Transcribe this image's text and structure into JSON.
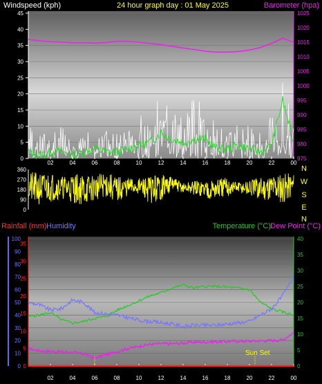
{
  "header": {
    "left_label": "Windspeed (kph)",
    "title": "24 hour graph day : 01 May 2025",
    "right_label": "Barometer (hpa)"
  },
  "colors": {
    "wind": "#ffffff",
    "gust": "#f0f0f0",
    "avg_wind": "#22dd22",
    "barometer": "#ee22ee",
    "direction": "#ffff00",
    "rain": "#ff2222",
    "humidity": "#7777ff",
    "temperature": "#22cc22",
    "dewpoint": "#ee22ee",
    "label_yellow": "#ffff00"
  },
  "chart_data": [
    {
      "type": "line",
      "name": "wind-barometer",
      "xlabels": [
        "02",
        "04",
        "06",
        "08",
        "10",
        "12",
        "14",
        "16",
        "18",
        "20",
        "22",
        "00"
      ],
      "left_axis": {
        "label": "Windspeed (kph)",
        "ticks": [
          "0",
          "5",
          "10",
          "15",
          "20",
          "25",
          "30",
          "35",
          "40",
          "45"
        ],
        "ylim": [
          0,
          45
        ]
      },
      "right_axis": {
        "label": "Barometer (hpa)",
        "ticks": [
          "975",
          "980",
          "985",
          "990",
          "995",
          "1000",
          "1005",
          "1010",
          "1015",
          "1020",
          "1025"
        ],
        "ylim": [
          975,
          1025
        ]
      },
      "barometer": {
        "x": [
          0,
          1,
          2,
          3,
          4,
          5,
          6,
          7,
          8,
          9,
          10,
          11,
          12,
          13,
          14,
          15,
          16,
          17,
          18,
          19,
          20,
          21,
          22,
          23,
          24
        ],
        "values": [
          1016.0,
          1015.5,
          1015.2,
          1015.0,
          1014.8,
          1014.8,
          1014.7,
          1014.9,
          1015.3,
          1015.3,
          1015.0,
          1014.6,
          1014.2,
          1013.6,
          1013.0,
          1012.5,
          1011.9,
          1011.6,
          1011.6,
          1011.8,
          1012.3,
          1013.2,
          1014.6,
          1016.4,
          1015.0
        ]
      },
      "wind_envelope": {
        "x": [
          0,
          1,
          2,
          3,
          4,
          5,
          6,
          7,
          8,
          9,
          10,
          11,
          12,
          13,
          14,
          15,
          16,
          17,
          18,
          19,
          20,
          21,
          22,
          23,
          24
        ],
        "peak": [
          11,
          7,
          9,
          10,
          5,
          7,
          11,
          9,
          9,
          10,
          13,
          15,
          20,
          17,
          14,
          19,
          16,
          11,
          10,
          12,
          11,
          8,
          14,
          27,
          12
        ],
        "avg": [
          2,
          1,
          2,
          2,
          1,
          2,
          3,
          2,
          2,
          3,
          4,
          5,
          8,
          6,
          5,
          6,
          6,
          3,
          3,
          4,
          3,
          2,
          4,
          18,
          5
        ]
      }
    },
    {
      "type": "line",
      "name": "wind-direction",
      "left_axis": {
        "ticks": [
          "0",
          "90",
          "180",
          "270",
          "360"
        ],
        "ylim": [
          0,
          360
        ]
      },
      "compass": [
        "N",
        "W",
        "S",
        "E",
        "N"
      ],
      "direction_band": {
        "x": [
          0,
          1,
          2,
          3,
          4,
          5,
          6,
          7,
          8,
          9,
          10,
          11,
          12,
          13,
          14,
          15,
          16,
          17,
          18,
          19,
          20,
          21,
          22,
          23,
          24
        ],
        "low": [
          60,
          40,
          70,
          100,
          60,
          40,
          80,
          110,
          60,
          120,
          140,
          50,
          80,
          170,
          150,
          130,
          100,
          90,
          110,
          150,
          120,
          80,
          100,
          60,
          120
        ],
        "high": [
          340,
          330,
          340,
          300,
          330,
          320,
          310,
          340,
          300,
          290,
          280,
          310,
          320,
          300,
          240,
          260,
          270,
          280,
          290,
          250,
          260,
          300,
          320,
          340,
          330
        ]
      }
    },
    {
      "type": "line",
      "name": "temp-humidity-rain",
      "xlabels": [
        "02",
        "04",
        "06",
        "08",
        "10",
        "12",
        "14",
        "16",
        "18",
        "20",
        "22",
        "00"
      ],
      "header": {
        "rain_label": "Rainfall (mm)",
        "humidity_label": "Humidity",
        "temp_label": "Temperature (°C)",
        "dew_label": "Dew Point (°C)"
      },
      "humidity_axis": {
        "ticks": [
          "0",
          "10",
          "20",
          "30",
          "40",
          "50",
          "60",
          "70",
          "80",
          "90",
          "100"
        ],
        "ylim": [
          0,
          100
        ]
      },
      "rain_axis": {
        "ticks": [
          "0",
          "5",
          "10",
          "15",
          "20",
          "25",
          "30",
          "35"
        ],
        "ylim": [
          0,
          35
        ]
      },
      "temp_axis": {
        "ticks": [
          "0",
          "5",
          "10",
          "15",
          "20",
          "25",
          "30",
          "35",
          "40"
        ],
        "ylim": [
          0,
          40
        ]
      },
      "sunset_label": "Sun Set",
      "sunset_hour": 20.5,
      "sunrise_hour": 6,
      "temperature": {
        "x": [
          0,
          1,
          2,
          3,
          4,
          5,
          6,
          7,
          8,
          9,
          10,
          11,
          12,
          13,
          14,
          15,
          16,
          17,
          18,
          19,
          20,
          21,
          22,
          23,
          24
        ],
        "values": [
          15.5,
          16.0,
          16.8,
          14.5,
          13.5,
          14.0,
          15.0,
          15.5,
          17.5,
          19.0,
          20.5,
          22.0,
          23.0,
          24.5,
          25.5,
          24.5,
          25.0,
          25.0,
          24.8,
          24.5,
          24.0,
          20.0,
          18.0,
          17.0,
          16.0
        ]
      },
      "humidity": {
        "x": [
          0,
          1,
          2,
          3,
          4,
          5,
          6,
          7,
          8,
          9,
          10,
          11,
          12,
          13,
          14,
          15,
          16,
          17,
          18,
          19,
          20,
          21,
          22,
          23,
          24
        ],
        "values": [
          50,
          48,
          44,
          45,
          52,
          50,
          42,
          41,
          40,
          38,
          36,
          35,
          34,
          33,
          31,
          32,
          32,
          32,
          33,
          34,
          35,
          40,
          45,
          55,
          70
        ]
      },
      "dew_point": {
        "x": [
          0,
          1,
          2,
          3,
          4,
          5,
          6,
          7,
          8,
          9,
          10,
          11,
          12,
          13,
          14,
          15,
          16,
          17,
          18,
          19,
          20,
          21,
          22,
          23,
          24
        ],
        "values": [
          5.5,
          4.8,
          4.6,
          4.5,
          4.3,
          3.8,
          2.5,
          3.5,
          4.5,
          5.5,
          6.2,
          6.8,
          7.0,
          7.0,
          7.2,
          7.5,
          7.5,
          7.6,
          7.7,
          7.8,
          7.8,
          7.9,
          8.0,
          8.2,
          10.5
        ]
      },
      "rainfall": {
        "x": [
          0,
          24
        ],
        "values": [
          0,
          0
        ]
      }
    }
  ]
}
